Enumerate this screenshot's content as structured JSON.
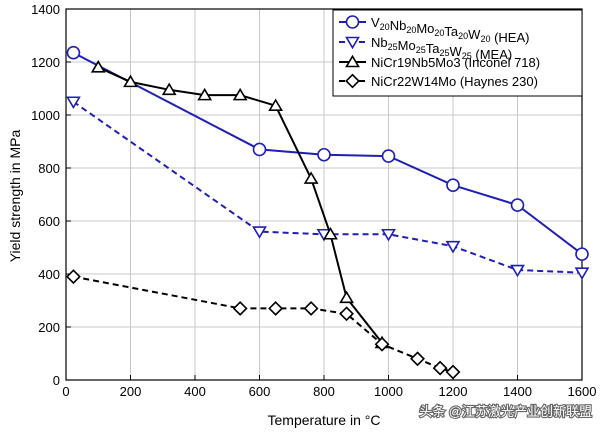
{
  "chart_data": {
    "type": "line",
    "title": "",
    "xlabel": "Temperature in °C",
    "ylabel": "Yield strength in MPa",
    "xlim": [
      0,
      1600
    ],
    "ylim": [
      0,
      1400
    ],
    "x_ticks": [
      0,
      200,
      400,
      600,
      800,
      1000,
      1200,
      1400,
      1600
    ],
    "y_ticks": [
      0,
      200,
      400,
      600,
      800,
      1000,
      1200,
      1400
    ],
    "grid": true,
    "legend_position": "top-right",
    "series": [
      {
        "key": "hea",
        "legend_parts": [
          [
            "V",
            ""
          ],
          [
            "20",
            "sub"
          ],
          [
            "Nb",
            ""
          ],
          [
            "20",
            "sub"
          ],
          [
            "Mo",
            ""
          ],
          [
            "20",
            "sub"
          ],
          [
            "Ta",
            ""
          ],
          [
            "20",
            "sub"
          ],
          [
            "W",
            ""
          ],
          [
            "20",
            "sub"
          ],
          [
            " (HEA)",
            ""
          ]
        ],
        "color": "#1f1fb4",
        "dashed": false,
        "marker": "circle",
        "points": [
          [
            23,
            1235
          ],
          [
            600,
            870
          ],
          [
            800,
            850
          ],
          [
            1000,
            845
          ],
          [
            1200,
            735
          ],
          [
            1400,
            660
          ],
          [
            1600,
            475
          ]
        ]
      },
      {
        "key": "mea",
        "legend_parts": [
          [
            "Nb",
            ""
          ],
          [
            "25",
            "sub"
          ],
          [
            "Mo",
            ""
          ],
          [
            "25",
            "sub"
          ],
          [
            "Ta",
            ""
          ],
          [
            "25",
            "sub"
          ],
          [
            "W",
            ""
          ],
          [
            "25",
            "sub"
          ],
          [
            " (MEA)",
            ""
          ]
        ],
        "color": "#1f1fb4",
        "dashed": true,
        "marker": "triangle-down",
        "points": [
          [
            23,
            1050
          ],
          [
            600,
            560
          ],
          [
            800,
            550
          ],
          [
            1000,
            550
          ],
          [
            1200,
            505
          ],
          [
            1400,
            415
          ],
          [
            1600,
            405
          ]
        ]
      },
      {
        "key": "inconel",
        "legend_parts": [
          [
            "NiCr19Nb5Mo3 (Inconel 718)",
            ""
          ]
        ],
        "color": "#000000",
        "dashed": false,
        "marker": "triangle-up",
        "points": [
          [
            100,
            1180
          ],
          [
            200,
            1125
          ],
          [
            320,
            1095
          ],
          [
            430,
            1075
          ],
          [
            540,
            1075
          ],
          [
            650,
            1035
          ],
          [
            760,
            760
          ],
          [
            820,
            550
          ],
          [
            870,
            310
          ],
          [
            980,
            140
          ]
        ]
      },
      {
        "key": "haynes",
        "legend_parts": [
          [
            "NiCr22W14Mo (Haynes 230)",
            ""
          ]
        ],
        "color": "#000000",
        "dashed": true,
        "marker": "diamond",
        "points": [
          [
            23,
            390
          ],
          [
            540,
            270
          ],
          [
            650,
            270
          ],
          [
            760,
            270
          ],
          [
            870,
            250
          ],
          [
            980,
            135
          ],
          [
            1090,
            80
          ],
          [
            1160,
            45
          ],
          [
            1200,
            30
          ]
        ]
      }
    ]
  },
  "watermark": "头条 @江苏激光产业创新联盟"
}
